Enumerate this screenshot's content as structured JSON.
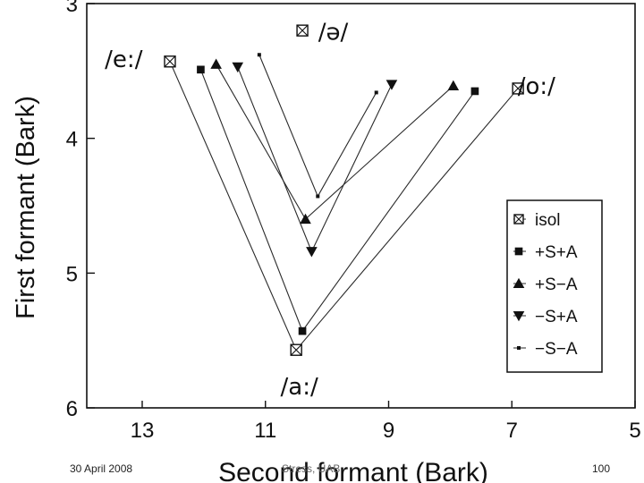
{
  "footer": {
    "date": "30 April 2008",
    "center": "Stress, UAB",
    "page": "100"
  },
  "chart_data": {
    "type": "line",
    "xlabel": "Second formant (Bark)",
    "ylabel": "First formant (Bark)",
    "xlim": [
      13.9,
      5
    ],
    "ylim": [
      3,
      6
    ],
    "x_reversed": true,
    "y_reversed": true,
    "x_ticks": [
      13,
      11,
      9,
      7,
      5
    ],
    "y_ticks": [
      3,
      4,
      5,
      6
    ],
    "legend_position": "lower-right",
    "vowel_labels": [
      {
        "text": "/e:/",
        "x": 13.3,
        "y": 3.42
      },
      {
        "text": "/ə/",
        "x": 9.9,
        "y": 3.22
      },
      {
        "text": "/o:/",
        "x": 6.6,
        "y": 3.62
      },
      {
        "text": "/a:/",
        "x": 10.45,
        "y": 5.85
      }
    ],
    "series": [
      {
        "name": "isol",
        "marker": "boxx",
        "points": [
          [
            12.55,
            3.43
          ],
          [
            10.5,
            5.57
          ],
          [
            6.9,
            3.63
          ]
        ]
      },
      {
        "name": "+S+A",
        "marker": "square",
        "points": [
          [
            12.05,
            3.49
          ],
          [
            10.4,
            5.43
          ],
          [
            7.6,
            3.65
          ]
        ]
      },
      {
        "name": "+S−A",
        "marker": "triangle-up",
        "points": [
          [
            11.8,
            3.45
          ],
          [
            10.35,
            4.6
          ],
          [
            7.95,
            3.61
          ]
        ]
      },
      {
        "name": "−S+A",
        "marker": "triangle-down",
        "points": [
          [
            11.45,
            3.47
          ],
          [
            10.25,
            4.84
          ],
          [
            8.95,
            3.6
          ]
        ]
      },
      {
        "name": "−S−A",
        "marker": "dot",
        "points": [
          [
            11.1,
            3.38
          ],
          [
            10.15,
            4.43
          ],
          [
            9.2,
            3.66
          ]
        ]
      }
    ],
    "isolated_points": [
      {
        "label": "/ə/",
        "marker": "boxx",
        "x": 10.4,
        "y": 3.2
      }
    ],
    "colors": {
      "line": "#2a2a2a",
      "marker": "#111111",
      "axis": "#111111",
      "background": "#ffffff"
    }
  }
}
